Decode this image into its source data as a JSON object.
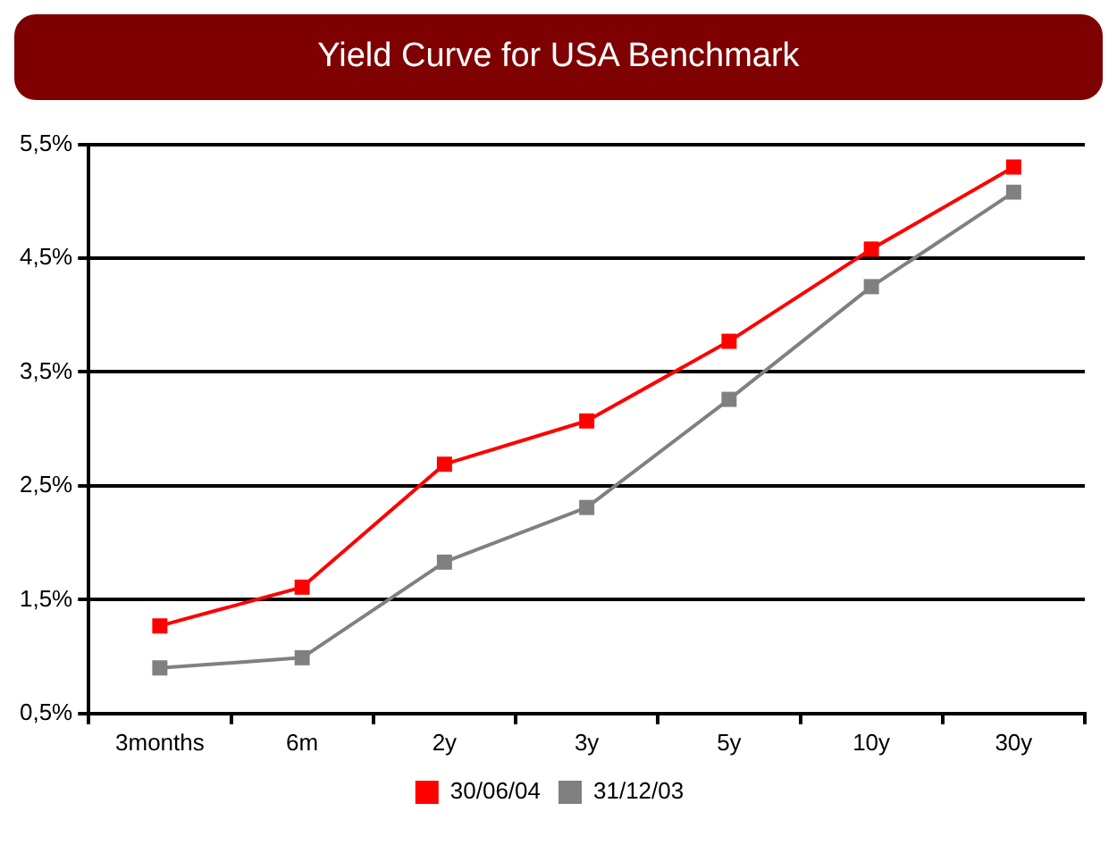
{
  "chart_data": {
    "type": "line",
    "title": "Yield Curve for USA Benchmark",
    "categories": [
      "3months",
      "6m",
      "2y",
      "3y",
      "5y",
      "10y",
      "30y"
    ],
    "series": [
      {
        "name": "30/06/04",
        "color": "#ff0000",
        "values": [
          1.27,
          1.61,
          2.69,
          3.07,
          3.77,
          4.58,
          5.3
        ]
      },
      {
        "name": "31/12/03",
        "color": "#808080",
        "values": [
          0.9,
          0.99,
          1.83,
          2.31,
          3.26,
          4.25,
          5.08
        ]
      }
    ],
    "ylim": [
      0.5,
      5.5
    ],
    "yticks": [
      {
        "value": 0.5,
        "label": "0,5%"
      },
      {
        "value": 1.5,
        "label": "1,5%"
      },
      {
        "value": 2.5,
        "label": "2,5%"
      },
      {
        "value": 3.5,
        "label": "3,5%"
      },
      {
        "value": 4.5,
        "label": "4,5%"
      },
      {
        "value": 5.5,
        "label": "5,5%"
      }
    ],
    "grid": "y",
    "legend": "bottom",
    "marker": "square",
    "line_style": "solid"
  }
}
